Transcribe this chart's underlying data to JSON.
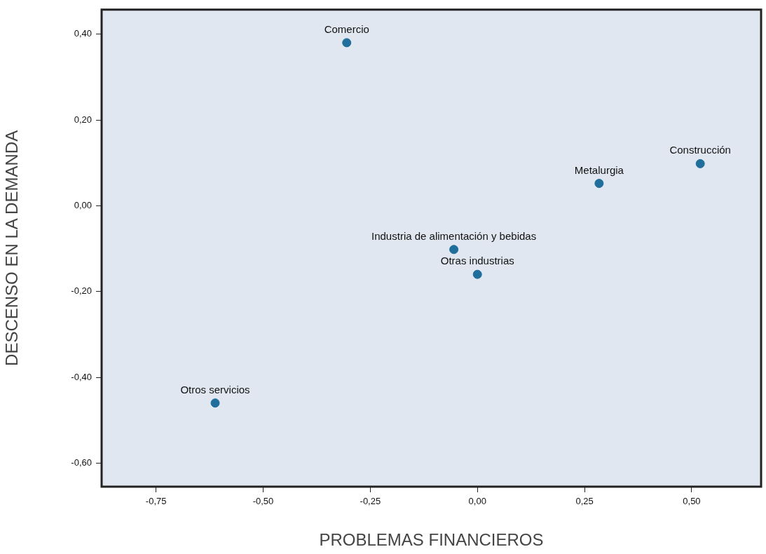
{
  "chart_data": {
    "type": "scatter",
    "xlabel": "PROBLEMAS FINANCIEROS",
    "ylabel": "DESCENSO EN LA DEMANDA",
    "x": [
      -0.305,
      0.52,
      0.284,
      -0.055,
      0.0,
      -0.612
    ],
    "series": [
      {
        "color": "#1f6e9c",
        "values": [
          0.38,
          0.098,
          0.052,
          -0.102,
          -0.16,
          -0.46
        ]
      }
    ],
    "annotations": [
      {
        "text": "Comercio",
        "x": -0.305,
        "y": 0.38
      },
      {
        "text": "Construcción",
        "x": 0.52,
        "y": 0.098
      },
      {
        "text": "Metalurgia",
        "x": 0.284,
        "y": 0.052
      },
      {
        "text": "Industria de alimentación y bebidas",
        "x": -0.055,
        "y": -0.102
      },
      {
        "text": "Otras industrias",
        "x": 0.0,
        "y": -0.16
      },
      {
        "text": "Otros servicios",
        "x": -0.612,
        "y": -0.46
      }
    ],
    "xlim": [
      -0.877,
      0.662
    ],
    "ylim": [
      -0.655,
      0.457
    ],
    "xticks": [
      {
        "value": -0.75,
        "label": "-0,75"
      },
      {
        "value": -0.5,
        "label": "-0,50"
      },
      {
        "value": -0.25,
        "label": "-0,25"
      },
      {
        "value": 0,
        "label": "0,00"
      },
      {
        "value": 0.25,
        "label": "0,25"
      },
      {
        "value": 0.5,
        "label": "0,50"
      }
    ],
    "yticks": [
      {
        "value": 0.4,
        "label": "0,40"
      },
      {
        "value": 0.2,
        "label": "0,20"
      },
      {
        "value": 0,
        "label": "0,00"
      },
      {
        "value": -0.2,
        "label": "-0,20"
      },
      {
        "value": -0.4,
        "label": "-0,40"
      },
      {
        "value": -0.6,
        "label": "-0,60"
      }
    ],
    "grid": false,
    "legend": false,
    "marker": "circle"
  }
}
